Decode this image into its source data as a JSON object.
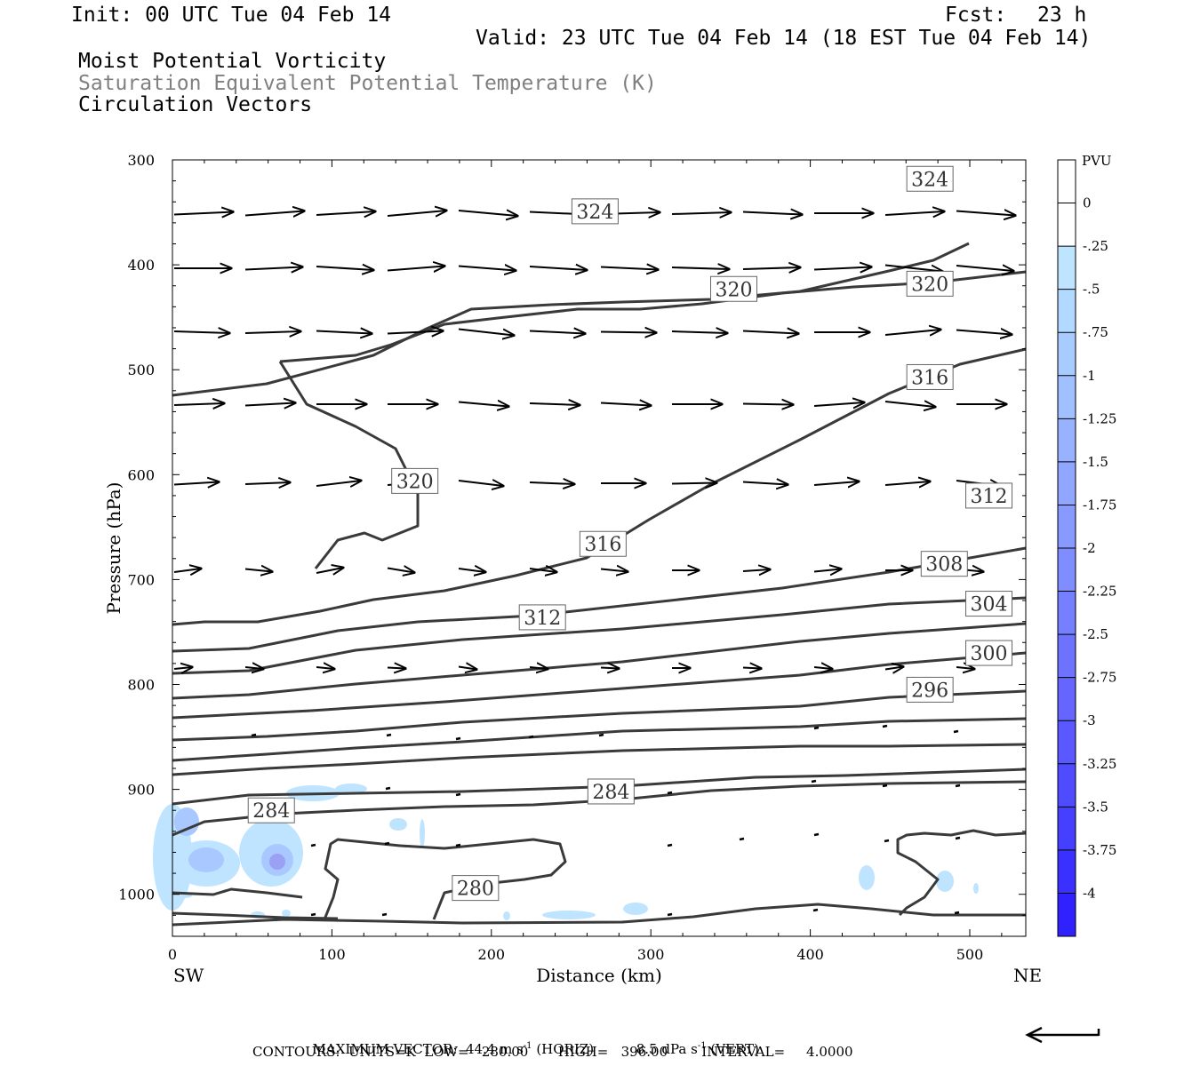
{
  "header": {
    "init": "Init: 00 UTC Tue 04 Feb 14",
    "fcst_label": "Fcst:",
    "fcst_value": "23 h",
    "valid": "Valid: 23 UTC Tue 04 Feb 14 (18 EST Tue 04 Feb 14)",
    "field1": "Moist Potential Vorticity",
    "field2": "Saturation Equivalent Potential Temperature (K)",
    "field3": "Circulation Vectors"
  },
  "colors": {
    "contour": "#3a3a3a",
    "pv_light": "#bfe4ff",
    "pv_mid": "#a8c8ff",
    "pv_strong": "#9aa0f4",
    "field2_text": "#808080"
  },
  "chart_data": {
    "type": "cross-section",
    "xlabel": "Distance (km)",
    "ylabel": "Pressure (hPa)",
    "x_ticks": [
      0,
      100,
      200,
      300,
      400,
      500
    ],
    "y_ticks": [
      300,
      400,
      500,
      600,
      700,
      800,
      900,
      1000
    ],
    "xlim": [
      0,
      535
    ],
    "ylim_hpa": [
      300,
      1040
    ],
    "left_end_label": "SW",
    "right_end_label": "NE",
    "colorbar": {
      "unit": "PVU",
      "tick_labels": [
        "0",
        "-.25",
        "-.5",
        "-.75",
        "-1",
        "-1.25",
        "-1.5",
        "-1.75",
        "-2",
        "-2.25",
        "-2.5",
        "-2.75",
        "-3",
        "-3.25",
        "-3.5",
        "-3.75",
        "-4"
      ],
      "colors": [
        "#ffffff",
        "#ffffff",
        "#bfe4ff",
        "#b2d9ff",
        "#a8ccff",
        "#a0c0ff",
        "#98b2ff",
        "#90a6ff",
        "#889aff",
        "#7f8dff",
        "#7680ff",
        "#6d73ff",
        "#6466ff",
        "#5a59ff",
        "#4f4cff",
        "#453fff",
        "#3a30ff",
        "#2f22ff"
      ]
    },
    "contour_labels": [
      {
        "value": "324",
        "km": 475,
        "hpa": 318
      },
      {
        "value": "324",
        "km": 265,
        "hpa": 349
      },
      {
        "value": "320",
        "km": 352,
        "hpa": 423
      },
      {
        "value": "320",
        "km": 475,
        "hpa": 418
      },
      {
        "value": "316",
        "km": 475,
        "hpa": 507
      },
      {
        "value": "320",
        "km": 152,
        "hpa": 606
      },
      {
        "value": "312",
        "km": 512,
        "hpa": 620
      },
      {
        "value": "316",
        "km": 270,
        "hpa": 666
      },
      {
        "value": "308",
        "km": 484,
        "hpa": 685
      },
      {
        "value": "304",
        "km": 512,
        "hpa": 723
      },
      {
        "value": "312",
        "km": 232,
        "hpa": 736
      },
      {
        "value": "300",
        "km": 512,
        "hpa": 770
      },
      {
        "value": "296",
        "km": 475,
        "hpa": 805
      },
      {
        "value": "284",
        "km": 275,
        "hpa": 902
      },
      {
        "value": "284",
        "km": 62,
        "hpa": 920
      },
      {
        "value": "280",
        "km": 190,
        "hpa": 994
      }
    ],
    "footer": {
      "max_vector_label": "MAXIMUM VECTOR:",
      "horiz": "44.4 m s",
      "horiz_unit": "(HORIZ)",
      "vert": "8.5 dPa s",
      "vert_unit": "(VERT)",
      "contours": "CONTOURS:  UNITS=K  LOW=   280.00       HIGH=   396.00        INTERVAL=     4.0000"
    }
  }
}
